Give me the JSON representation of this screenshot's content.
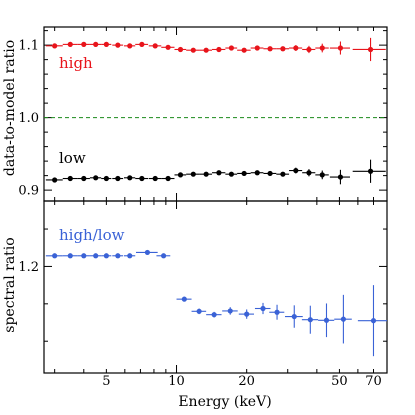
{
  "chart_data": [
    {
      "type": "scatter",
      "panel": "top",
      "ylabel": "data-to-model ratio",
      "x_scale": "log",
      "xlim": [
        2.7,
        80
      ],
      "ylim": [
        0.885,
        1.125
      ],
      "yticks": [
        0.9,
        1.0,
        1.1
      ],
      "ytick_labels": [
        "0.9",
        "1.0",
        "1.1"
      ],
      "reference_line": {
        "y": 1.0,
        "style": "dashed",
        "color": "#1a8a1a"
      },
      "colors": {
        "high": "#e8141b",
        "low": "#000000"
      },
      "series": [
        {
          "name": "high",
          "points": [
            {
              "x": 3.0,
              "xerr": [
                0.25,
                0.25
              ],
              "y": 1.099,
              "yerr": 0.002
            },
            {
              "x": 3.5,
              "xerr": [
                0.25,
                0.25
              ],
              "y": 1.101,
              "yerr": 0.002
            },
            {
              "x": 4.0,
              "xerr": [
                0.25,
                0.25
              ],
              "y": 1.101,
              "yerr": 0.002
            },
            {
              "x": 4.5,
              "xerr": [
                0.25,
                0.25
              ],
              "y": 1.101,
              "yerr": 0.002
            },
            {
              "x": 5.0,
              "xerr": [
                0.25,
                0.25
              ],
              "y": 1.101,
              "yerr": 0.002
            },
            {
              "x": 5.6,
              "xerr": [
                0.3,
                0.3
              ],
              "y": 1.1,
              "yerr": 0.002
            },
            {
              "x": 6.3,
              "xerr": [
                0.35,
                0.35
              ],
              "y": 1.099,
              "yerr": 0.002
            },
            {
              "x": 7.1,
              "xerr": [
                0.45,
                0.45
              ],
              "y": 1.101,
              "yerr": 0.002
            },
            {
              "x": 8.1,
              "xerr": [
                0.5,
                0.5
              ],
              "y": 1.099,
              "yerr": 0.002
            },
            {
              "x": 9.2,
              "xerr": [
                0.6,
                0.6
              ],
              "y": 1.097,
              "yerr": 0.002
            },
            {
              "x": 10.4,
              "xerr": [
                0.6,
                0.6
              ],
              "y": 1.094,
              "yerr": 0.002
            },
            {
              "x": 11.8,
              "xerr": [
                0.8,
                0.8
              ],
              "y": 1.093,
              "yerr": 0.002
            },
            {
              "x": 13.4,
              "xerr": [
                0.8,
                0.8
              ],
              "y": 1.093,
              "yerr": 0.002
            },
            {
              "x": 15.2,
              "xerr": [
                1.0,
                1.0
              ],
              "y": 1.094,
              "yerr": 0.002
            },
            {
              "x": 17.2,
              "xerr": [
                1.0,
                1.0
              ],
              "y": 1.096,
              "yerr": 0.002
            },
            {
              "x": 19.5,
              "xerr": [
                1.3,
                1.3
              ],
              "y": 1.093,
              "yerr": 0.002
            },
            {
              "x": 22.2,
              "xerr": [
                1.4,
                1.4
              ],
              "y": 1.096,
              "yerr": 0.003
            },
            {
              "x": 25.2,
              "xerr": [
                1.6,
                1.6
              ],
              "y": 1.095,
              "yerr": 0.003
            },
            {
              "x": 28.6,
              "xerr": [
                1.8,
                1.8
              ],
              "y": 1.095,
              "yerr": 0.003
            },
            {
              "x": 32.5,
              "xerr": [
                2.1,
                2.1
              ],
              "y": 1.096,
              "yerr": 0.004
            },
            {
              "x": 37.0,
              "xerr": [
                2.4,
                2.4
              ],
              "y": 1.094,
              "yerr": 0.005
            },
            {
              "x": 42.2,
              "xerr": [
                2.8,
                2.8
              ],
              "y": 1.096,
              "yerr": 0.006
            },
            {
              "x": 50.5,
              "xerr": [
                5.0,
                5.0
              ],
              "y": 1.096,
              "yerr": 0.009
            },
            {
              "x": 68.0,
              "xerr": [
                11.0,
                11.0
              ],
              "y": 1.094,
              "yerr": 0.016
            }
          ]
        },
        {
          "name": "low",
          "points": [
            {
              "x": 3.0,
              "xerr": [
                0.25,
                0.25
              ],
              "y": 0.914,
              "yerr": 0.002
            },
            {
              "x": 3.5,
              "xerr": [
                0.25,
                0.25
              ],
              "y": 0.916,
              "yerr": 0.002
            },
            {
              "x": 4.0,
              "xerr": [
                0.25,
                0.25
              ],
              "y": 0.916,
              "yerr": 0.002
            },
            {
              "x": 4.5,
              "xerr": [
                0.25,
                0.25
              ],
              "y": 0.917,
              "yerr": 0.002
            },
            {
              "x": 5.0,
              "xerr": [
                0.25,
                0.25
              ],
              "y": 0.916,
              "yerr": 0.002
            },
            {
              "x": 5.6,
              "xerr": [
                0.3,
                0.3
              ],
              "y": 0.916,
              "yerr": 0.002
            },
            {
              "x": 6.3,
              "xerr": [
                0.35,
                0.35
              ],
              "y": 0.917,
              "yerr": 0.002
            },
            {
              "x": 7.1,
              "xerr": [
                0.45,
                0.45
              ],
              "y": 0.916,
              "yerr": 0.002
            },
            {
              "x": 8.1,
              "xerr": [
                0.5,
                0.5
              ],
              "y": 0.916,
              "yerr": 0.002
            },
            {
              "x": 9.2,
              "xerr": [
                0.6,
                0.6
              ],
              "y": 0.916,
              "yerr": 0.002
            },
            {
              "x": 10.4,
              "xerr": [
                0.6,
                0.6
              ],
              "y": 0.921,
              "yerr": 0.002
            },
            {
              "x": 11.8,
              "xerr": [
                0.8,
                0.8
              ],
              "y": 0.922,
              "yerr": 0.002
            },
            {
              "x": 13.4,
              "xerr": [
                0.8,
                0.8
              ],
              "y": 0.922,
              "yerr": 0.002
            },
            {
              "x": 15.2,
              "xerr": [
                1.0,
                1.0
              ],
              "y": 0.924,
              "yerr": 0.002
            },
            {
              "x": 17.2,
              "xerr": [
                1.0,
                1.0
              ],
              "y": 0.922,
              "yerr": 0.002
            },
            {
              "x": 19.5,
              "xerr": [
                1.3,
                1.3
              ],
              "y": 0.923,
              "yerr": 0.002
            },
            {
              "x": 22.2,
              "xerr": [
                1.4,
                1.4
              ],
              "y": 0.924,
              "yerr": 0.003
            },
            {
              "x": 25.2,
              "xerr": [
                1.6,
                1.6
              ],
              "y": 0.923,
              "yerr": 0.003
            },
            {
              "x": 28.6,
              "xerr": [
                1.8,
                1.8
              ],
              "y": 0.922,
              "yerr": 0.003
            },
            {
              "x": 32.5,
              "xerr": [
                2.1,
                2.1
              ],
              "y": 0.927,
              "yerr": 0.004
            },
            {
              "x": 37.0,
              "xerr": [
                2.4,
                2.4
              ],
              "y": 0.924,
              "yerr": 0.005
            },
            {
              "x": 42.2,
              "xerr": [
                2.8,
                2.8
              ],
              "y": 0.921,
              "yerr": 0.006
            },
            {
              "x": 50.5,
              "xerr": [
                5.0,
                5.0
              ],
              "y": 0.918,
              "yerr": 0.01
            },
            {
              "x": 68.0,
              "xerr": [
                11.0,
                11.0
              ],
              "y": 0.926,
              "yerr": 0.016
            }
          ]
        }
      ]
    },
    {
      "type": "scatter",
      "panel": "bottom",
      "xlabel": "Energy (keV)",
      "ylabel": "spectral ratio",
      "x_scale": "log",
      "xlim": [
        2.7,
        80
      ],
      "ylim": [
        1.143,
        1.235
      ],
      "xticks": [
        5,
        10,
        20,
        50,
        70
      ],
      "xtick_labels": [
        "5",
        "10",
        "20",
        "50",
        "70"
      ],
      "yticks": [
        1.2
      ],
      "ytick_labels": [
        "1.2"
      ],
      "colors": {
        "high/low": "#3a62d6"
      },
      "series": [
        {
          "name": "high/low",
          "points": [
            {
              "x": 3.0,
              "xerr": [
                0.25,
                0.25
              ],
              "y": 1.2057,
              "yerr": 0.0005
            },
            {
              "x": 3.5,
              "xerr": [
                0.25,
                0.25
              ],
              "y": 1.2057,
              "yerr": 0.0005
            },
            {
              "x": 4.0,
              "xerr": [
                0.25,
                0.25
              ],
              "y": 1.2057,
              "yerr": 0.0005
            },
            {
              "x": 4.5,
              "xerr": [
                0.25,
                0.25
              ],
              "y": 1.2057,
              "yerr": 0.0005
            },
            {
              "x": 5.0,
              "xerr": [
                0.25,
                0.25
              ],
              "y": 1.2057,
              "yerr": 0.0005
            },
            {
              "x": 5.6,
              "xerr": [
                0.3,
                0.3
              ],
              "y": 1.2057,
              "yerr": 0.0005
            },
            {
              "x": 6.3,
              "xerr": [
                0.35,
                0.35
              ],
              "y": 1.2057,
              "yerr": 0.0005
            },
            {
              "x": 7.5,
              "xerr": [
                0.8,
                0.8
              ],
              "y": 1.2075,
              "yerr": 0.0008
            },
            {
              "x": 8.8,
              "xerr": [
                0.6,
                0.6
              ],
              "y": 1.2057,
              "yerr": 0.0008
            },
            {
              "x": 10.8,
              "xerr": [
                0.8,
                0.8
              ],
              "y": 1.1825,
              "yerr": 0.001
            },
            {
              "x": 12.5,
              "xerr": [
                0.9,
                0.9
              ],
              "y": 1.176,
              "yerr": 0.0015
            },
            {
              "x": 14.5,
              "xerr": [
                1.1,
                1.1
              ],
              "y": 1.1742,
              "yerr": 0.0015
            },
            {
              "x": 17.0,
              "xerr": [
                1.3,
                1.3
              ],
              "y": 1.1762,
              "yerr": 0.002
            },
            {
              "x": 20.0,
              "xerr": [
                1.5,
                1.5
              ],
              "y": 1.1745,
              "yerr": 0.0025
            },
            {
              "x": 23.5,
              "xerr": [
                1.8,
                1.8
              ],
              "y": 1.1775,
              "yerr": 0.003
            },
            {
              "x": 27.0,
              "xerr": [
                2.0,
                2.0
              ],
              "y": 1.1755,
              "yerr": 0.004
            },
            {
              "x": 32.0,
              "xerr": [
                2.8,
                2.8
              ],
              "y": 1.1732,
              "yerr": 0.006
            },
            {
              "x": 37.5,
              "xerr": [
                3.0,
                3.0
              ],
              "y": 1.1715,
              "yerr": 0.0075
            },
            {
              "x": 44.0,
              "xerr": [
                3.5,
                3.5
              ],
              "y": 1.1712,
              "yerr": 0.009
            },
            {
              "x": 52.0,
              "xerr": [
                4.5,
                4.5
              ],
              "y": 1.1718,
              "yerr": 0.013
            },
            {
              "x": 70.0,
              "xerr": [
                10.0,
                10.0
              ],
              "y": 1.171,
              "yerr": 0.019
            }
          ]
        }
      ]
    }
  ]
}
